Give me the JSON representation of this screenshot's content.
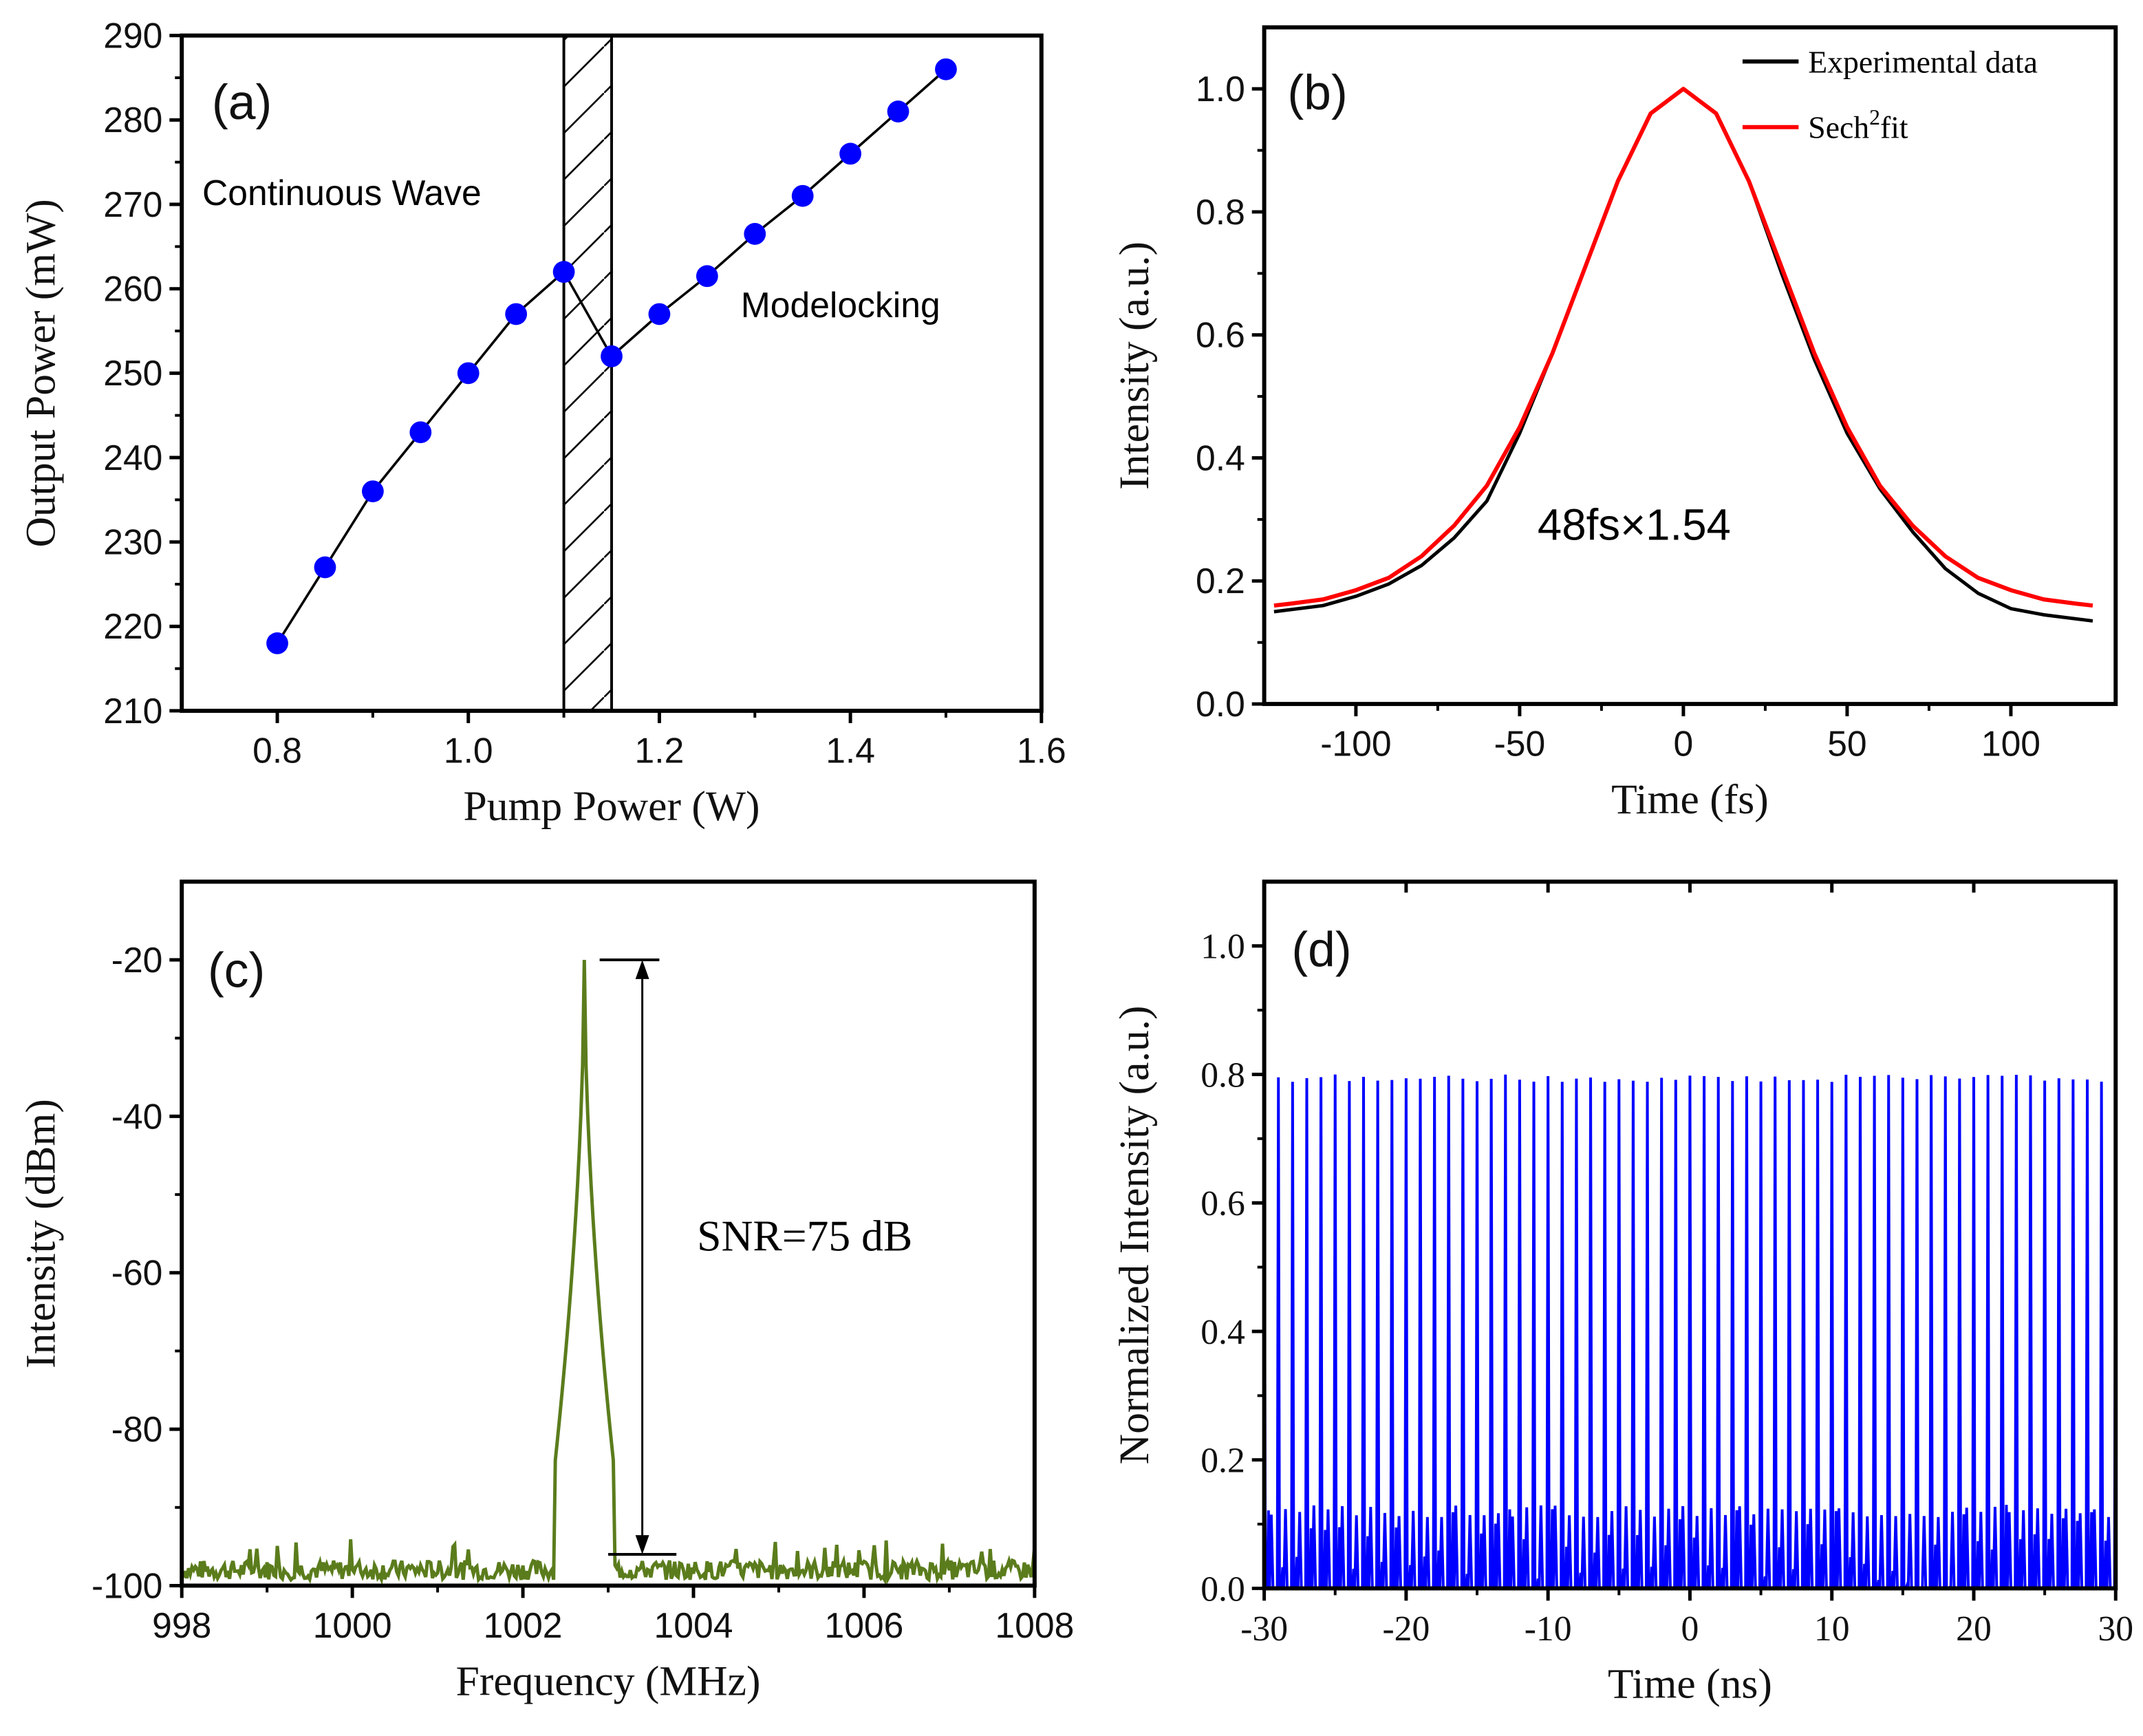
{
  "chart_data": [
    {
      "id": "a",
      "type": "line",
      "panel_label": "(a)",
      "xlabel": "Pump Power (W)",
      "ylabel": "Output Power (mW)",
      "xlim": [
        0.7,
        1.6
      ],
      "ylim": [
        210,
        290
      ],
      "xticks": [
        0.8,
        1.0,
        1.2,
        1.4,
        1.6
      ],
      "xtick_labels": [
        "0.8",
        "1.0",
        "1.2",
        "1.4",
        "1.6"
      ],
      "yticks": [
        210,
        220,
        230,
        240,
        250,
        260,
        270,
        280,
        290
      ],
      "ytick_labels": [
        "210",
        "220",
        "230",
        "240",
        "250",
        "260",
        "270",
        "280",
        "290"
      ],
      "series": [
        {
          "name": "Output power",
          "color": "#0000ff",
          "x": [
            0.8,
            0.85,
            0.9,
            0.95,
            1.0,
            1.05,
            1.1,
            1.15,
            1.2,
            1.25,
            1.3,
            1.35,
            1.4,
            1.45,
            1.5
          ],
          "y": [
            218,
            227,
            236,
            243,
            250,
            257,
            262,
            252,
            257,
            261.5,
            266.5,
            271,
            276,
            281,
            286
          ]
        }
      ],
      "shaded_region": {
        "x": [
          1.1,
          1.15
        ],
        "pattern": "hatched"
      },
      "annotations": [
        "Continuous Wave",
        "Modelocking"
      ]
    },
    {
      "id": "b",
      "type": "line",
      "panel_label": "(b)",
      "xlabel": "Time (fs)",
      "ylabel": "Intensity (a.u.)",
      "xlim": [
        -128,
        132
      ],
      "ylim": [
        0,
        1.1
      ],
      "xticks": [
        -100,
        -50,
        0,
        50,
        100
      ],
      "xtick_labels": [
        "-100",
        "-50",
        "0",
        "50",
        "100"
      ],
      "yticks": [
        0,
        0.2,
        0.4,
        0.6,
        0.8,
        1.0
      ],
      "ytick_labels": [
        "0.0",
        "0.2",
        "0.4",
        "0.6",
        "0.8",
        "1.0"
      ],
      "legend_position": "top-right",
      "series": [
        {
          "name": "Experimental data",
          "color": "#000000",
          "x": [
            -125,
            -110,
            -100,
            -90,
            -80,
            -70,
            -60,
            -50,
            -40,
            -30,
            -20,
            -10,
            0,
            10,
            20,
            30,
            40,
            50,
            60,
            70,
            80,
            90,
            100,
            110,
            125
          ],
          "y": [
            0.15,
            0.16,
            0.175,
            0.195,
            0.225,
            0.27,
            0.33,
            0.44,
            0.57,
            0.71,
            0.85,
            0.96,
            1.0,
            0.96,
            0.85,
            0.7,
            0.56,
            0.44,
            0.35,
            0.28,
            0.22,
            0.18,
            0.155,
            0.145,
            0.135
          ]
        },
        {
          "name": "Sech2fit",
          "color": "#ff0000",
          "x": [
            -125,
            -120,
            -110,
            -100,
            -90,
            -80,
            -70,
            -60,
            -50,
            -40,
            -30,
            -20,
            -10,
            0,
            10,
            20,
            30,
            40,
            50,
            60,
            70,
            80,
            90,
            100,
            110,
            120,
            125
          ],
          "y": [
            0.16,
            0.163,
            0.17,
            0.185,
            0.205,
            0.24,
            0.29,
            0.355,
            0.45,
            0.57,
            0.71,
            0.85,
            0.96,
            1.0,
            0.96,
            0.85,
            0.71,
            0.57,
            0.45,
            0.355,
            0.29,
            0.24,
            0.205,
            0.185,
            0.17,
            0.163,
            0.16
          ]
        }
      ],
      "legend": {
        "exp": "Experimental data",
        "fit_prefix": "Sech",
        "fit_sup": "2",
        "fit_suffix": "fit"
      },
      "annotations": [
        "48fs×1.54"
      ]
    },
    {
      "id": "c",
      "type": "line",
      "panel_label": "(c)",
      "xlabel": "Frequency (MHz)",
      "ylabel": "Intensity (dBm)",
      "xlim": [
        998,
        1008
      ],
      "ylim": [
        -100,
        -10
      ],
      "xticks": [
        998,
        1000,
        1002,
        1004,
        1006,
        1008
      ],
      "xtick_labels": [
        "998",
        "1000",
        "1002",
        "1004",
        "1006",
        "1008"
      ],
      "yticks": [
        -100,
        -80,
        -60,
        -40,
        -20
      ],
      "ytick_labels": [
        "-100",
        "-80",
        "-60",
        "-40",
        "-20"
      ],
      "series": [
        {
          "name": "RF spectrum",
          "color": "#5b7c1c",
          "noise_floor_dbm": -98,
          "peak_freq_mhz": 1002.72,
          "peak_dbm": -20
        }
      ],
      "snr_marker": {
        "top_dbm": -20,
        "bottom_dbm": -96,
        "freq_mhz": 1003.4
      },
      "annotations": [
        "SNR=75 dB"
      ]
    },
    {
      "id": "d",
      "type": "line",
      "panel_label": "(d)",
      "xlabel": "Time (ns)",
      "ylabel": "Normalized Intensity (a.u.)",
      "xlim": [
        -30,
        30
      ],
      "ylim": [
        0,
        1.1
      ],
      "xticks": [
        -30,
        -20,
        -10,
        0,
        10,
        20,
        30
      ],
      "xtick_labels": [
        "-30",
        "-20",
        "-10",
        "0",
        "10",
        "20",
        "30"
      ],
      "yticks": [
        0,
        0.2,
        0.4,
        0.6,
        0.8,
        1.0
      ],
      "ytick_labels": [
        "0.0",
        "0.2",
        "0.4",
        "0.6",
        "0.8",
        "1.0"
      ],
      "series": [
        {
          "name": "Pulse train",
          "color": "#0000ff",
          "pulse_period_ns": 1.0,
          "peak": 0.8,
          "secondary_level": 0.13
        }
      ]
    }
  ]
}
